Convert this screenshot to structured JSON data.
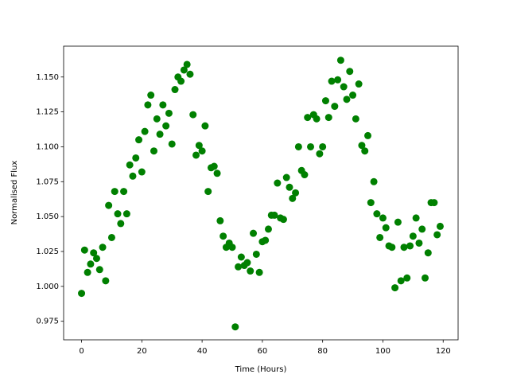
{
  "chart_data": {
    "type": "scatter",
    "x_label": "Time (Hours)",
    "y_label": "Normalised Flux",
    "color": "#008000",
    "x": [
      0,
      1,
      2,
      3,
      4,
      5,
      6,
      7,
      8,
      9,
      10,
      11,
      12,
      13,
      14,
      15,
      16,
      17,
      18,
      19,
      20,
      21,
      22,
      23,
      24,
      25,
      26,
      27,
      28,
      29,
      30,
      31,
      32,
      33,
      34,
      35,
      36,
      37,
      38,
      39,
      40,
      41,
      42,
      43,
      44,
      45,
      46,
      47,
      48,
      49,
      50,
      51,
      52,
      53,
      54,
      55,
      56,
      57,
      58,
      59,
      60,
      61,
      62,
      63,
      64,
      65,
      66,
      67,
      68,
      69,
      70,
      71,
      72,
      73,
      74,
      75,
      76,
      77,
      78,
      79,
      80,
      81,
      82,
      83,
      84,
      85,
      86,
      87,
      88,
      89,
      90,
      91,
      92,
      93,
      94,
      95,
      96,
      97,
      98,
      99,
      100,
      101,
      102,
      103,
      104,
      105,
      106,
      107,
      108,
      109,
      110,
      111,
      112,
      113,
      114,
      115,
      116,
      117,
      118,
      119
    ],
    "values": [
      0.995,
      1.026,
      1.01,
      1.016,
      1.024,
      1.02,
      1.012,
      1.028,
      1.004,
      1.058,
      1.035,
      1.068,
      1.052,
      1.045,
      1.068,
      1.052,
      1.087,
      1.079,
      1.092,
      1.105,
      1.082,
      1.111,
      1.13,
      1.137,
      1.097,
      1.12,
      1.109,
      1.13,
      1.115,
      1.124,
      1.102,
      1.141,
      1.15,
      1.147,
      1.155,
      1.159,
      1.152,
      1.123,
      1.094,
      1.101,
      1.097,
      1.115,
      1.068,
      1.085,
      1.086,
      1.081,
      1.047,
      1.036,
      1.028,
      1.031,
      1.028,
      0.971,
      1.014,
      1.021,
      1.015,
      1.017,
      1.011,
      1.038,
      1.023,
      1.01,
      1.032,
      1.033,
      1.041,
      1.051,
      1.051,
      1.074,
      1.049,
      1.048,
      1.078,
      1.071,
      1.063,
      1.067,
      1.1,
      1.083,
      1.08,
      1.121,
      1.1,
      1.123,
      1.12,
      1.095,
      1.1,
      1.133,
      1.121,
      1.147,
      1.129,
      1.148,
      1.162,
      1.143,
      1.134,
      1.154,
      1.137,
      1.12,
      1.145,
      1.101,
      1.097,
      1.108,
      1.06,
      1.075,
      1.052,
      1.035,
      1.049,
      1.042,
      1.029,
      1.028,
      0.999,
      1.046,
      1.004,
      1.028,
      1.006,
      1.029,
      1.036,
      1.049,
      1.031,
      1.041,
      1.006,
      1.024,
      1.06,
      1.06,
      1.037,
      1.043
    ],
    "xlim": [
      -5.95,
      124.95
    ],
    "ylim": [
      0.9617,
      1.1721
    ],
    "xticks": [
      0,
      20,
      40,
      60,
      80,
      100,
      120
    ],
    "yticks": [
      {
        "value": 0.975,
        "label": "0.975"
      },
      {
        "value": 1.0,
        "label": "1.000"
      },
      {
        "value": 1.025,
        "label": "1.025"
      },
      {
        "value": 1.05,
        "label": "1.050"
      },
      {
        "value": 1.075,
        "label": "1.075"
      },
      {
        "value": 1.1,
        "label": "1.100"
      },
      {
        "value": 1.125,
        "label": "1.125"
      },
      {
        "value": 1.15,
        "label": "1.150"
      }
    ]
  }
}
